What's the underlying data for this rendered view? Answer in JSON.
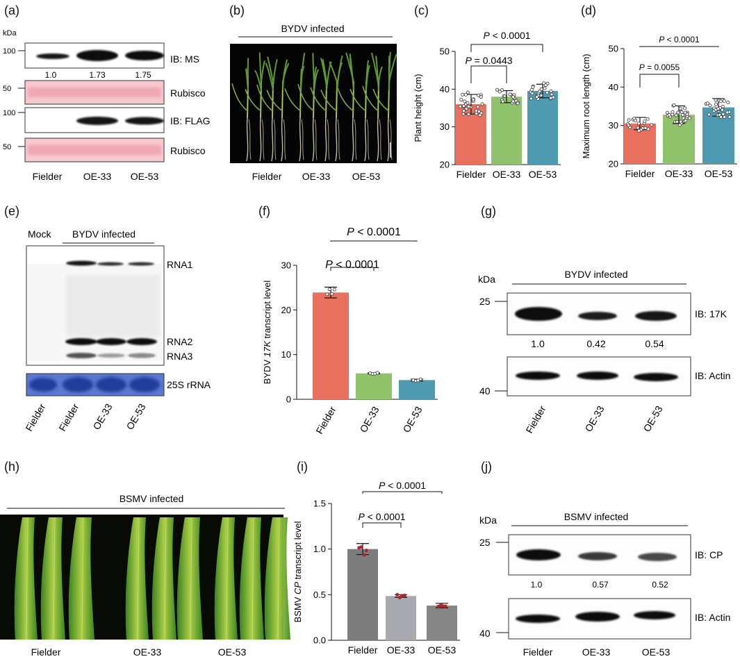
{
  "panel_labels": {
    "a": "(a)",
    "b": "(b)",
    "c": "(c)",
    "d": "(d)",
    "e": "(e)",
    "f": "(f)",
    "g": "(g)",
    "h": "(h)",
    "i": "(i)",
    "j": "(j)"
  },
  "colors": {
    "fielder": "#e8705f",
    "oe33": "#8fc26a",
    "oe53": "#4e9ab0",
    "bsmv_fielder": "#7d7d7d",
    "bsmv_oe33": "#a9a9b0",
    "bsmv_oe53": "#858585",
    "ponceau": "#f6c9ce",
    "methylene": "#3c5ab8",
    "band": "#141414",
    "dot": "#b53a3a"
  },
  "genotypes": [
    "Fielder",
    "OE-33",
    "OE-53"
  ],
  "panel_a": {
    "kda_label": "kDa",
    "markers": [
      "100",
      "50",
      "100",
      "50"
    ],
    "ib_ms": "IB: MS",
    "rubisco_1": "Rubisco",
    "ib_flag": "IB: FLAG",
    "rubisco_2": "Rubisco",
    "ms_ratios": [
      "1.0",
      "1.73",
      "1.75"
    ],
    "lanes": [
      "Fielder",
      "OE-33",
      "OE-53"
    ]
  },
  "panel_b": {
    "title": "BYDV infected",
    "lanes": [
      "Fielder",
      "OE-33",
      "OE-53"
    ]
  },
  "panel_e": {
    "mock": "Mock",
    "infected": "BYDV infected",
    "rna1": "RNA1",
    "rna2": "RNA2",
    "rna3": "RNA3",
    "rrna": "25S rRNA",
    "lanes": [
      "Fielder",
      "Fielder",
      "OE-33",
      "OE-53"
    ]
  },
  "panel_g": {
    "kda_label": "kDa",
    "title": "BYDV infected",
    "marker_25": "25",
    "marker_40": "40",
    "ib_17k": "IB: 17K",
    "ib_actin": "IB: Actin",
    "ratios": [
      "1.0",
      "0.42",
      "0.54"
    ],
    "lanes": [
      "Fielder",
      "OE-33",
      "OE-53"
    ]
  },
  "panel_h": {
    "title": "BSMV infected",
    "lanes": [
      "Fielder",
      "OE-33",
      "OE-53"
    ]
  },
  "panel_j": {
    "kda_label": "kDa",
    "title": "BSMV infected",
    "marker_25": "25",
    "marker_40": "40",
    "ib_cp": "IB: CP",
    "ib_actin": "IB: Actin",
    "ratios": [
      "1.0",
      "0.57",
      "0.52"
    ],
    "lanes": [
      "Fielder",
      "OE-33",
      "OE-53"
    ]
  },
  "chart_data": [
    {
      "panel": "c",
      "type": "bar",
      "categories": [
        "Fielder",
        "OE-33",
        "OE-53"
      ],
      "values": [
        36,
        38,
        39.5
      ],
      "errors": [
        2.6,
        1.6,
        1.8
      ],
      "ylabel": "Plant height (cm)",
      "ylim": [
        20,
        50
      ],
      "yticks": [
        "20",
        "30",
        "40",
        "50"
      ],
      "comparisons": [
        {
          "pair": [
            0,
            1
          ],
          "pre": "P",
          "text": " = 0.0443"
        },
        {
          "pair": [
            0,
            2
          ],
          "pre": "P",
          "text": " < 0.0001"
        }
      ]
    },
    {
      "panel": "d",
      "type": "bar",
      "categories": [
        "Fielder",
        "OE-33",
        "OE-53"
      ],
      "values": [
        30.5,
        32.8,
        34.7
      ],
      "errors": [
        1.6,
        2.3,
        2.3
      ],
      "ylabel": "Maximum root length (cm)",
      "ylim": [
        20,
        50
      ],
      "yticks": [
        "20",
        "30",
        "40",
        "50"
      ],
      "comparisons": [
        {
          "pair": [
            0,
            1
          ],
          "pre": "P",
          "text": " = 0.0055"
        },
        {
          "pair": [
            0,
            2
          ],
          "pre": "P",
          "text": " < 0.0001"
        }
      ]
    },
    {
      "panel": "f",
      "type": "bar",
      "categories": [
        "Fielder",
        "OE-33",
        "OE-53"
      ],
      "values": [
        23.9,
        5.8,
        4.3
      ],
      "errors": [
        1.2,
        0.1,
        0.2
      ],
      "ylabel_pre": "BYDV ",
      "ylabel_italic": "17K",
      "ylabel_post": " transcript level",
      "ylim": [
        0,
        30
      ],
      "yticks": [
        "0",
        "10",
        "20",
        "30"
      ],
      "comparisons": [
        {
          "pair": [
            0,
            1
          ],
          "pre": "P",
          "text": " < 0.0001"
        },
        {
          "pair": [
            0,
            2
          ],
          "pre": "P",
          "text": " < 0.0001"
        }
      ]
    },
    {
      "panel": "i",
      "type": "bar",
      "categories": [
        "Fielder",
        "OE-33",
        "OE-53"
      ],
      "values": [
        1.0,
        0.485,
        0.38
      ],
      "errors": [
        0.06,
        0.015,
        0.025
      ],
      "ylabel_pre": "BSMV ",
      "ylabel_italic": "CP",
      "ylabel_post": " transcript level",
      "ylim": [
        0,
        1.5
      ],
      "yticks": [
        "0.0",
        "0.5",
        "1.0",
        "1.5"
      ],
      "comparisons": [
        {
          "pair": [
            0,
            1
          ],
          "pre": "P",
          "text": " < 0.0001"
        },
        {
          "pair": [
            0,
            2
          ],
          "pre": "P",
          "text": " < 0.0001"
        }
      ]
    }
  ]
}
